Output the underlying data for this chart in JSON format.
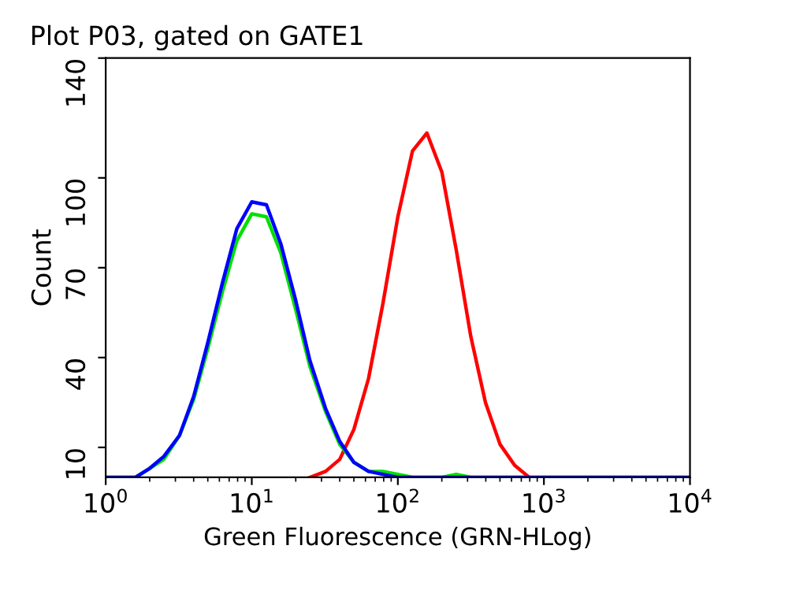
{
  "chart_data": {
    "type": "line",
    "title": "Plot P03, gated on GATE1",
    "xlabel": "Green Fluorescence (GRN-HLog)",
    "ylabel": "Count",
    "log": "x",
    "xlim": [
      1,
      10000
    ],
    "xticks": [
      {
        "value": 1,
        "label": "10$^{0}$"
      },
      {
        "value": 10,
        "label": "10$^{1}$"
      },
      {
        "value": 100,
        "label": "10$^{2}$"
      },
      {
        "value": 1000,
        "label": "10$^{3}$"
      },
      {
        "value": 10000,
        "label": "10$^{4}$"
      }
    ],
    "ylim": [
      0,
      140
    ],
    "yticks": [
      10,
      40,
      70,
      100,
      140
    ],
    "grid": false,
    "legend": false,
    "marker": "none",
    "line_style": "solid",
    "series": [
      {
        "color": "#ff0000",
        "x": [
          25,
          32,
          40,
          50,
          63,
          79,
          100,
          126,
          158,
          200,
          251,
          316,
          398,
          501,
          631,
          794
        ],
        "values": [
          0,
          2,
          6,
          16,
          33,
          58,
          87,
          109,
          115,
          102,
          76,
          47,
          25,
          11,
          4,
          0
        ]
      },
      {
        "color": "#00e000",
        "x": [
          1,
          1.6,
          2,
          2.5,
          3.2,
          4,
          5,
          6.3,
          7.9,
          10,
          12.6,
          15.8,
          20,
          25,
          32,
          40,
          50,
          63,
          79,
          100,
          126,
          200,
          251,
          316,
          10000
        ],
        "values": [
          0,
          0,
          3,
          6,
          14,
          26,
          43,
          62,
          79,
          88,
          87,
          75,
          56,
          37,
          22,
          11,
          5,
          2,
          2,
          1,
          0,
          0,
          1,
          0,
          0
        ]
      },
      {
        "color": "#0000ff",
        "x": [
          1,
          1.6,
          2,
          2.5,
          3.2,
          4,
          5,
          6.3,
          7.9,
          10,
          12.6,
          15.8,
          20,
          25,
          32,
          40,
          50,
          63,
          79,
          100,
          10000
        ],
        "values": [
          0,
          0,
          3,
          7,
          14,
          27,
          45,
          65,
          83,
          92,
          91,
          78,
          59,
          39,
          23,
          12,
          5,
          2,
          1,
          0,
          0
        ]
      }
    ]
  }
}
